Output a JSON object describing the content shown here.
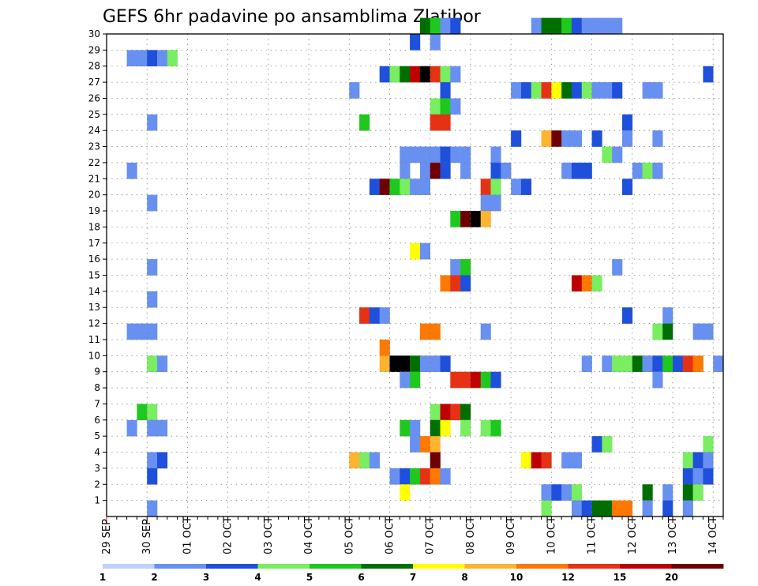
{
  "chart_data": {
    "type": "heatmap",
    "title": "GEFS 6hr padavine po ansamblima Zlatibor",
    "xlabel": "",
    "ylabel": "",
    "x_tick_labels": [
      "29 SEP",
      "30 SEP",
      "01 OCT",
      "02 OCT",
      "03 OCT",
      "04 OCT",
      "05 OCT",
      "06 OCT",
      "07 OCT",
      "08 OCT",
      "09 OCT",
      "10 OCT",
      "11 OCT",
      "12 OCT",
      "13 OCT",
      "14 OCT"
    ],
    "xlim": [
      0,
      61
    ],
    "y_tick_labels": [
      "1",
      "2",
      "3",
      "4",
      "5",
      "6",
      "7",
      "8",
      "9",
      "10",
      "11",
      "12",
      "13",
      "14",
      "15",
      "16",
      "17",
      "18",
      "19",
      "20",
      "21",
      "22",
      "23",
      "24",
      "25",
      "26",
      "27",
      "28",
      "29",
      "30"
    ],
    "ylim": [
      0,
      30
    ],
    "levels": [
      "1",
      "2",
      "3",
      "4",
      "5",
      "6",
      "7",
      "8",
      "10",
      "12",
      "15",
      "20"
    ],
    "colors": [
      "#c0d0f8",
      "#6890f0",
      "#1e50dc",
      "#78ee60",
      "#1ec81e",
      "#006e00",
      "#ffff00",
      "#ffb430",
      "#ff7800",
      "#e63214",
      "#be0000",
      "#6e0000"
    ],
    "grid": true,
    "cells": [
      [
        31.5,
        30,
        5
      ],
      [
        32.5,
        30,
        4
      ],
      [
        33.5,
        30,
        1
      ],
      [
        34.5,
        30,
        2
      ],
      [
        42.5,
        30,
        1
      ],
      [
        43.5,
        30,
        5
      ],
      [
        44.5,
        30,
        5
      ],
      [
        45.5,
        30,
        4
      ],
      [
        46.5,
        30,
        2
      ],
      [
        47.5,
        30,
        1
      ],
      [
        48.5,
        30,
        1
      ],
      [
        49.5,
        30,
        1
      ],
      [
        50.5,
        30,
        1
      ],
      [
        30.5,
        29,
        2
      ],
      [
        32.5,
        29,
        1
      ],
      [
        2.5,
        28,
        1
      ],
      [
        3.5,
        28,
        1
      ],
      [
        4.5,
        28,
        2
      ],
      [
        5.5,
        28,
        1
      ],
      [
        6.5,
        28,
        3
      ],
      [
        27.5,
        27,
        2
      ],
      [
        28.5,
        27,
        3
      ],
      [
        29.5,
        27,
        5
      ],
      [
        30.5,
        27,
        10
      ],
      [
        31.5,
        27,
        12
      ],
      [
        32.5,
        27,
        9
      ],
      [
        33.5,
        27,
        3
      ],
      [
        34.5,
        27,
        1
      ],
      [
        59.5,
        27,
        2
      ],
      [
        24.5,
        26,
        1
      ],
      [
        33.5,
        26,
        2
      ],
      [
        40.5,
        26,
        1
      ],
      [
        41.5,
        26,
        2
      ],
      [
        42.5,
        26,
        3
      ],
      [
        43.5,
        26,
        9
      ],
      [
        44.5,
        26,
        6
      ],
      [
        45.5,
        26,
        5
      ],
      [
        46.5,
        26,
        2
      ],
      [
        47.5,
        26,
        3
      ],
      [
        48.5,
        26,
        1
      ],
      [
        49.5,
        26,
        1
      ],
      [
        50.5,
        26,
        2
      ],
      [
        53.5,
        26,
        1
      ],
      [
        54.5,
        26,
        1
      ],
      [
        32.5,
        25,
        3
      ],
      [
        33.5,
        25,
        4
      ],
      [
        34.5,
        25,
        1
      ],
      [
        4.5,
        24,
        1
      ],
      [
        25.5,
        24,
        4
      ],
      [
        32.5,
        24,
        9
      ],
      [
        33.5,
        24,
        9
      ],
      [
        51.5,
        24,
        2
      ],
      [
        40.5,
        23,
        2
      ],
      [
        43.5,
        23,
        7
      ],
      [
        44.5,
        23,
        11
      ],
      [
        45.5,
        23,
        1
      ],
      [
        46.5,
        23,
        1
      ],
      [
        48.5,
        23,
        2
      ],
      [
        51.5,
        23,
        1
      ],
      [
        54.5,
        23,
        1
      ],
      [
        29.5,
        22,
        1
      ],
      [
        30.5,
        22,
        1
      ],
      [
        31.5,
        22,
        1
      ],
      [
        32.5,
        22,
        1
      ],
      [
        33.5,
        22,
        2
      ],
      [
        34.5,
        22,
        1
      ],
      [
        35.5,
        22,
        1
      ],
      [
        38.5,
        22,
        1
      ],
      [
        49.5,
        22,
        3
      ],
      [
        50.5,
        22,
        1
      ],
      [
        2.5,
        21,
        1
      ],
      [
        29.5,
        21,
        1
      ],
      [
        31.5,
        21,
        1
      ],
      [
        32.5,
        21,
        11
      ],
      [
        33.5,
        21,
        2
      ],
      [
        35.5,
        21,
        1
      ],
      [
        38.5,
        21,
        2
      ],
      [
        39.5,
        21,
        1
      ],
      [
        45.5,
        21,
        1
      ],
      [
        46.5,
        21,
        2
      ],
      [
        47.5,
        21,
        2
      ],
      [
        52.5,
        21,
        1
      ],
      [
        53.5,
        21,
        3
      ],
      [
        54.5,
        21,
        1
      ],
      [
        26.5,
        20,
        2
      ],
      [
        27.5,
        20,
        11
      ],
      [
        28.5,
        20,
        4
      ],
      [
        29.5,
        20,
        3
      ],
      [
        30.5,
        20,
        1
      ],
      [
        31.5,
        20,
        1
      ],
      [
        37.5,
        20,
        9
      ],
      [
        38.5,
        20,
        3
      ],
      [
        40.5,
        20,
        1
      ],
      [
        41.5,
        20,
        2
      ],
      [
        51.5,
        20,
        2
      ],
      [
        4.5,
        19,
        1
      ],
      [
        37.5,
        19,
        1
      ],
      [
        38.5,
        19,
        1
      ],
      [
        34.5,
        18,
        4
      ],
      [
        35.5,
        18,
        11
      ],
      [
        36.5,
        18,
        12
      ],
      [
        37.5,
        18,
        7
      ],
      [
        30.5,
        16,
        6
      ],
      [
        31.5,
        16,
        1
      ],
      [
        34.5,
        15,
        1
      ],
      [
        35.5,
        15,
        4
      ],
      [
        4.5,
        15,
        1
      ],
      [
        50.5,
        15,
        1
      ],
      [
        33.5,
        14,
        8
      ],
      [
        34.5,
        14,
        9
      ],
      [
        35.5,
        14,
        2
      ],
      [
        46.5,
        14,
        10
      ],
      [
        47.5,
        14,
        8
      ],
      [
        48.5,
        14,
        3
      ],
      [
        4.5,
        13,
        1
      ],
      [
        25.5,
        12,
        9
      ],
      [
        26.5,
        12,
        2
      ],
      [
        27.5,
        12,
        1
      ],
      [
        51.5,
        12,
        2
      ],
      [
        55.5,
        12,
        1
      ],
      [
        2.5,
        11,
        1
      ],
      [
        3.5,
        11,
        1
      ],
      [
        4.5,
        11,
        1
      ],
      [
        31.5,
        11,
        8
      ],
      [
        32.5,
        11,
        8
      ],
      [
        37.5,
        11,
        1
      ],
      [
        54.5,
        11,
        3
      ],
      [
        55.5,
        11,
        5
      ],
      [
        58.5,
        11,
        1
      ],
      [
        59.5,
        11,
        1
      ],
      [
        27.5,
        10,
        8
      ],
      [
        4.5,
        9,
        3
      ],
      [
        5.5,
        9,
        1
      ],
      [
        27.5,
        9,
        7
      ],
      [
        28.5,
        9,
        12
      ],
      [
        29.5,
        9,
        12
      ],
      [
        30.5,
        9,
        5
      ],
      [
        31.5,
        9,
        1
      ],
      [
        32.5,
        9,
        1
      ],
      [
        33.5,
        9,
        2
      ],
      [
        47.5,
        9,
        1
      ],
      [
        49.5,
        9,
        1
      ],
      [
        50.5,
        9,
        3
      ],
      [
        51.5,
        9,
        3
      ],
      [
        52.5,
        9,
        5
      ],
      [
        53.5,
        9,
        1
      ],
      [
        54.5,
        9,
        2
      ],
      [
        55.5,
        9,
        4
      ],
      [
        56.5,
        9,
        2
      ],
      [
        57.5,
        9,
        9
      ],
      [
        58.5,
        9,
        8
      ],
      [
        60.5,
        9,
        1
      ],
      [
        29.5,
        8,
        1
      ],
      [
        30.5,
        8,
        4
      ],
      [
        34.5,
        8,
        9
      ],
      [
        35.5,
        8,
        9
      ],
      [
        36.5,
        8,
        10
      ],
      [
        37.5,
        8,
        4
      ],
      [
        38.5,
        8,
        2
      ],
      [
        54.5,
        8,
        1
      ],
      [
        32.5,
        6,
        3
      ],
      [
        33.5,
        6,
        10
      ],
      [
        34.5,
        6,
        9
      ],
      [
        35.5,
        6,
        5
      ],
      [
        3.5,
        6,
        4
      ],
      [
        4.5,
        6,
        3
      ],
      [
        2.5,
        5,
        1
      ],
      [
        4.5,
        5,
        1
      ],
      [
        5.5,
        5,
        1
      ],
      [
        29.5,
        5,
        4
      ],
      [
        30.5,
        5,
        1
      ],
      [
        32.5,
        5,
        5
      ],
      [
        33.5,
        5,
        6
      ],
      [
        35.5,
        5,
        3
      ],
      [
        37.5,
        5,
        3
      ],
      [
        38.5,
        5,
        4
      ],
      [
        30.5,
        4,
        1
      ],
      [
        31.5,
        4,
        8
      ],
      [
        32.5,
        4,
        7
      ],
      [
        48.5,
        4,
        2
      ],
      [
        49.5,
        4,
        3
      ],
      [
        59.5,
        4,
        3
      ],
      [
        4.5,
        3,
        1
      ],
      [
        5.5,
        3,
        2
      ],
      [
        24.5,
        3,
        7
      ],
      [
        25.5,
        3,
        3
      ],
      [
        26.5,
        3,
        1
      ],
      [
        32.5,
        3,
        11
      ],
      [
        41.5,
        3,
        6
      ],
      [
        42.5,
        3,
        10
      ],
      [
        43.5,
        3,
        9
      ],
      [
        45.5,
        3,
        1
      ],
      [
        46.5,
        3,
        1
      ],
      [
        57.5,
        3,
        3
      ],
      [
        58.5,
        3,
        2
      ],
      [
        59.5,
        3,
        1
      ],
      [
        4.5,
        2,
        2
      ],
      [
        28.5,
        2,
        1
      ],
      [
        29.5,
        2,
        2
      ],
      [
        30.5,
        2,
        4
      ],
      [
        31.5,
        2,
        9
      ],
      [
        32.5,
        2,
        8
      ],
      [
        33.5,
        2,
        1
      ],
      [
        57.5,
        2,
        2
      ],
      [
        58.5,
        2,
        1
      ],
      [
        59.5,
        2,
        2
      ],
      [
        29.5,
        1,
        6
      ],
      [
        43.5,
        1,
        1
      ],
      [
        44.5,
        1,
        2
      ],
      [
        45.5,
        1,
        1
      ],
      [
        46.5,
        1,
        3
      ],
      [
        53.5,
        1,
        5
      ],
      [
        55.5,
        1,
        1
      ],
      [
        57.5,
        1,
        5
      ],
      [
        58.5,
        1,
        3
      ],
      [
        4.5,
        0,
        1
      ],
      [
        43.5,
        0,
        3
      ],
      [
        46.5,
        0,
        1
      ],
      [
        47.5,
        0,
        2
      ],
      [
        48.5,
        0,
        5
      ],
      [
        49.5,
        0,
        5
      ],
      [
        50.5,
        0,
        8
      ],
      [
        51.5,
        0,
        8
      ],
      [
        53.5,
        0,
        1
      ],
      [
        55.5,
        0,
        2
      ],
      [
        57.5,
        0,
        1
      ]
    ]
  }
}
